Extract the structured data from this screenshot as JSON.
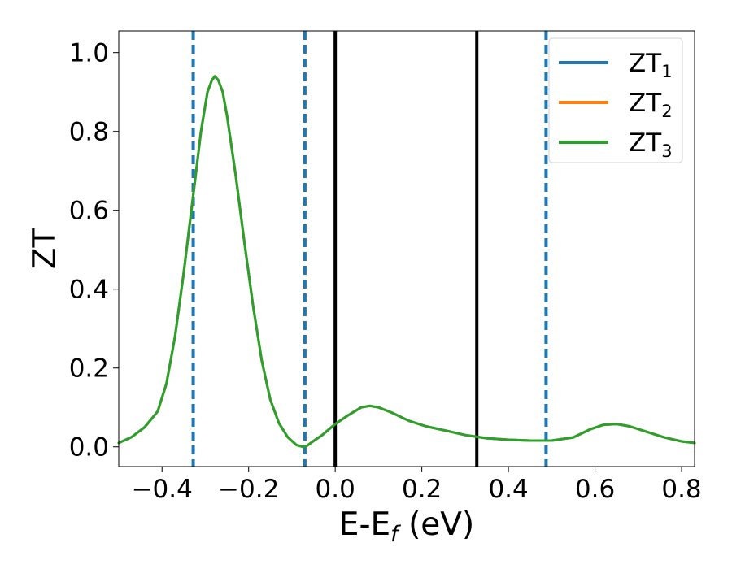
{
  "chart_data": {
    "type": "line",
    "xlabel": "E-E",
    "xlabel_sub": "f",
    "xlabel_unit": " (eV)",
    "ylabel": "ZT",
    "xlim": [
      -0.5,
      0.83
    ],
    "ylim": [
      -0.05,
      1.055
    ],
    "grid": false,
    "legend_position": "upper-right",
    "x_ticks": [
      -0.4,
      -0.2,
      0.0,
      0.2,
      0.4,
      0.6,
      0.8
    ],
    "x_tick_labels": [
      "−0.4",
      "−0.2",
      "0.0",
      "0.2",
      "0.4",
      "0.6",
      "0.8"
    ],
    "y_ticks": [
      0.0,
      0.2,
      0.4,
      0.6,
      0.8,
      1.0
    ],
    "y_tick_labels": [
      "0.0",
      "0.2",
      "0.4",
      "0.6",
      "0.8",
      "1.0"
    ],
    "vertical_lines": [
      {
        "x": -0.328,
        "style": "dashed",
        "color": "#1f77b4"
      },
      {
        "x": -0.07,
        "style": "dashed",
        "color": "#1f77b4"
      },
      {
        "x": 0.0,
        "style": "solid",
        "color": "#000000"
      },
      {
        "x": 0.327,
        "style": "solid",
        "color": "#000000"
      },
      {
        "x": 0.487,
        "style": "dashed",
        "color": "#1f77b4"
      }
    ],
    "series": [
      {
        "name": "ZT",
        "name_sub": "1",
        "color": "#1f77b4",
        "x": [
          -0.5,
          -0.47,
          -0.44,
          -0.41,
          -0.39,
          -0.37,
          -0.35,
          -0.33,
          -0.31,
          -0.295,
          -0.285,
          -0.278,
          -0.27,
          -0.26,
          -0.25,
          -0.23,
          -0.21,
          -0.19,
          -0.17,
          -0.15,
          -0.13,
          -0.11,
          -0.09,
          -0.075,
          -0.065,
          -0.05,
          -0.03,
          0.0,
          0.03,
          0.06,
          0.08,
          0.1,
          0.13,
          0.17,
          0.21,
          0.26,
          0.3,
          0.35,
          0.4,
          0.45,
          0.5,
          0.55,
          0.59,
          0.62,
          0.65,
          0.68,
          0.72,
          0.76,
          0.8,
          0.83
        ],
        "y": [
          0.01,
          0.025,
          0.05,
          0.09,
          0.16,
          0.28,
          0.44,
          0.62,
          0.8,
          0.9,
          0.93,
          0.94,
          0.93,
          0.9,
          0.84,
          0.69,
          0.52,
          0.36,
          0.22,
          0.12,
          0.06,
          0.025,
          0.005,
          0.0,
          0.003,
          0.015,
          0.03,
          0.058,
          0.08,
          0.1,
          0.104,
          0.1,
          0.087,
          0.066,
          0.052,
          0.04,
          0.03,
          0.022,
          0.018,
          0.016,
          0.016,
          0.024,
          0.045,
          0.056,
          0.058,
          0.052,
          0.038,
          0.024,
          0.014,
          0.01
        ]
      },
      {
        "name": "ZT",
        "name_sub": "2",
        "color": "#ff7f0e",
        "x": [
          -0.5,
          -0.47,
          -0.44,
          -0.41,
          -0.39,
          -0.37,
          -0.35,
          -0.33,
          -0.31,
          -0.295,
          -0.285,
          -0.278,
          -0.27,
          -0.26,
          -0.25,
          -0.23,
          -0.21,
          -0.19,
          -0.17,
          -0.15,
          -0.13,
          -0.11,
          -0.09,
          -0.075,
          -0.065,
          -0.05,
          -0.03,
          0.0,
          0.03,
          0.06,
          0.08,
          0.1,
          0.13,
          0.17,
          0.21,
          0.26,
          0.3,
          0.35,
          0.4,
          0.45,
          0.5,
          0.55,
          0.59,
          0.62,
          0.65,
          0.68,
          0.72,
          0.76,
          0.8,
          0.83
        ],
        "y": [
          0.01,
          0.025,
          0.05,
          0.09,
          0.16,
          0.28,
          0.44,
          0.62,
          0.8,
          0.9,
          0.93,
          0.94,
          0.93,
          0.9,
          0.84,
          0.69,
          0.52,
          0.36,
          0.22,
          0.12,
          0.06,
          0.025,
          0.005,
          0.0,
          0.003,
          0.015,
          0.03,
          0.058,
          0.08,
          0.1,
          0.104,
          0.1,
          0.087,
          0.066,
          0.052,
          0.04,
          0.03,
          0.022,
          0.018,
          0.016,
          0.016,
          0.024,
          0.045,
          0.056,
          0.058,
          0.052,
          0.038,
          0.024,
          0.014,
          0.01
        ]
      },
      {
        "name": "ZT",
        "name_sub": "3",
        "color": "#2ca02c",
        "x": [
          -0.5,
          -0.47,
          -0.44,
          -0.41,
          -0.39,
          -0.37,
          -0.35,
          -0.33,
          -0.31,
          -0.295,
          -0.285,
          -0.278,
          -0.27,
          -0.26,
          -0.25,
          -0.23,
          -0.21,
          -0.19,
          -0.17,
          -0.15,
          -0.13,
          -0.11,
          -0.09,
          -0.075,
          -0.065,
          -0.05,
          -0.03,
          0.0,
          0.03,
          0.06,
          0.08,
          0.1,
          0.13,
          0.17,
          0.21,
          0.26,
          0.3,
          0.35,
          0.4,
          0.45,
          0.5,
          0.55,
          0.59,
          0.62,
          0.65,
          0.68,
          0.72,
          0.76,
          0.8,
          0.83
        ],
        "y": [
          0.01,
          0.025,
          0.05,
          0.09,
          0.16,
          0.28,
          0.44,
          0.62,
          0.8,
          0.9,
          0.93,
          0.94,
          0.93,
          0.9,
          0.84,
          0.69,
          0.52,
          0.36,
          0.22,
          0.12,
          0.06,
          0.025,
          0.005,
          0.0,
          0.003,
          0.015,
          0.03,
          0.058,
          0.08,
          0.1,
          0.104,
          0.1,
          0.087,
          0.066,
          0.052,
          0.04,
          0.03,
          0.022,
          0.018,
          0.016,
          0.016,
          0.024,
          0.045,
          0.056,
          0.058,
          0.052,
          0.038,
          0.024,
          0.014,
          0.01
        ]
      }
    ]
  }
}
